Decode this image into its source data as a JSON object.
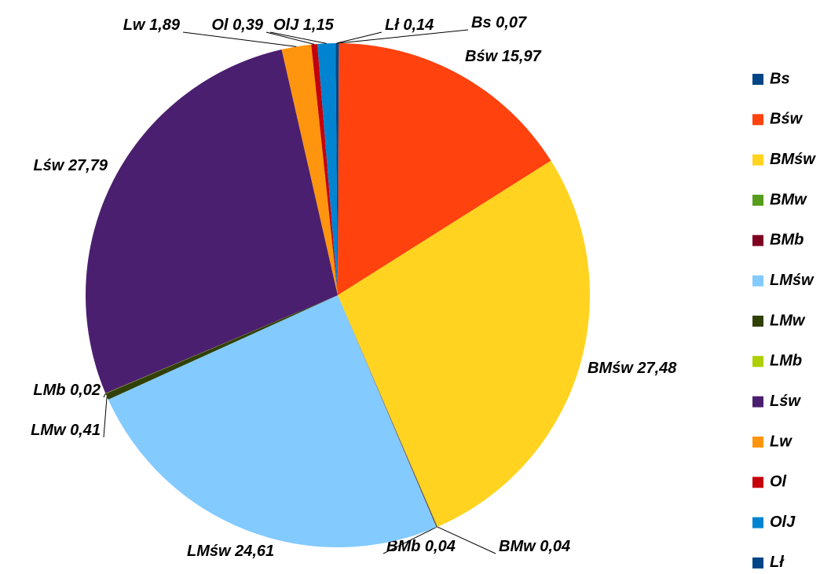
{
  "chart_data": {
    "type": "pie",
    "categories": [
      "Bs",
      "Bśw",
      "BMśw",
      "BMw",
      "BMb",
      "LMśw",
      "LMw",
      "LMb",
      "Lśw",
      "Lw",
      "Ol",
      "OlJ",
      "Lł"
    ],
    "values": [
      0.07,
      15.97,
      27.48,
      0.04,
      0.04,
      24.61,
      0.41,
      0.02,
      27.79,
      1.89,
      0.39,
      1.15,
      0.14
    ],
    "value_labels": [
      "0,07",
      "15,97",
      "27,48",
      "0,04",
      "0,04",
      "24,61",
      "0,41",
      "0,02",
      "27,79",
      "1,89",
      "0,39",
      "1,15",
      "0,14"
    ],
    "colors": [
      "#004586",
      "#ff420e",
      "#ffd320",
      "#579d1c",
      "#7e0021",
      "#83caff",
      "#314004",
      "#aecf00",
      "#4b1f6f",
      "#ff950e",
      "#c5000b",
      "#0084d1",
      "#004586"
    ],
    "legend": "right"
  }
}
